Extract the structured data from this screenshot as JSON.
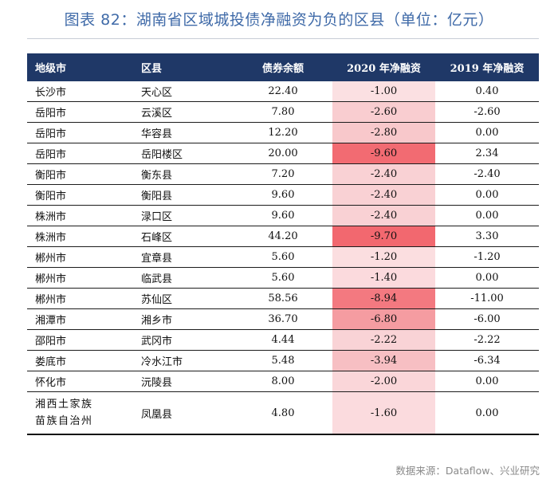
{
  "title": "图表 82：湖南省区域城投债净融资为负的区县（单位：亿元）",
  "source": "数据来源：Dataflow、兴业研究",
  "table": {
    "headers": [
      "地级市",
      "区县",
      "债券余额",
      "2020 年净融资",
      "2019 年净融资"
    ],
    "rows": [
      {
        "city": "长沙市",
        "county": "天心区",
        "debt": "22.40",
        "net2020": "-1.00",
        "net2019": "0.40",
        "shade": "#fbe0e2"
      },
      {
        "city": "岳阳市",
        "county": "云溪区",
        "debt": "7.80",
        "net2020": "-2.60",
        "net2019": "-2.60",
        "shade": "#f9cdd0"
      },
      {
        "city": "岳阳市",
        "county": "华容县",
        "debt": "12.20",
        "net2020": "-2.80",
        "net2019": "0.00",
        "shade": "#f8c8cb"
      },
      {
        "city": "岳阳市",
        "county": "岳阳楼区",
        "debt": "20.00",
        "net2020": "-9.60",
        "net2019": "2.34",
        "shade": "#f26b72"
      },
      {
        "city": "衡阳市",
        "county": "衡东县",
        "debt": "7.20",
        "net2020": "-2.40",
        "net2019": "-2.40",
        "shade": "#f9d1d4"
      },
      {
        "city": "衡阳市",
        "county": "衡阳县",
        "debt": "9.60",
        "net2020": "-2.40",
        "net2019": "0.00",
        "shade": "#f9d1d4"
      },
      {
        "city": "株洲市",
        "county": "渌口区",
        "debt": "9.60",
        "net2020": "-2.40",
        "net2019": "0.00",
        "shade": "#f9d1d4"
      },
      {
        "city": "株洲市",
        "county": "石峰区",
        "debt": "44.20",
        "net2020": "-9.70",
        "net2019": "3.30",
        "shade": "#f2686f"
      },
      {
        "city": "郴州市",
        "county": "宜章县",
        "debt": "5.60",
        "net2020": "-1.20",
        "net2019": "-1.20",
        "shade": "#fbdee0"
      },
      {
        "city": "郴州市",
        "county": "临武县",
        "debt": "5.60",
        "net2020": "-1.40",
        "net2019": "0.00",
        "shade": "#fbdadd"
      },
      {
        "city": "郴州市",
        "county": "苏仙区",
        "debt": "58.56",
        "net2020": "-8.94",
        "net2019": "-11.00",
        "shade": "#f37980"
      },
      {
        "city": "湘潭市",
        "county": "湘乡市",
        "debt": "36.70",
        "net2020": "-6.80",
        "net2019": "-6.00",
        "shade": "#f59ca1"
      },
      {
        "city": "邵阳市",
        "county": "武冈市",
        "debt": "4.44",
        "net2020": "-2.22",
        "net2019": "-2.22",
        "shade": "#f9d3d6"
      },
      {
        "city": "娄底市",
        "county": "冷水江市",
        "debt": "5.48",
        "net2020": "-3.94",
        "net2019": "-6.34",
        "shade": "#f7bfc3"
      },
      {
        "city": "怀化市",
        "county": "沅陵县",
        "debt": "8.00",
        "net2020": "-2.00",
        "net2019": "0.00",
        "shade": "#fad6d9"
      },
      {
        "city": "湘西土家族苗族自治州",
        "county": "凤凰县",
        "debt": "4.80",
        "net2020": "-1.60",
        "net2019": "0.00",
        "shade": "#fbdbde"
      }
    ]
  }
}
